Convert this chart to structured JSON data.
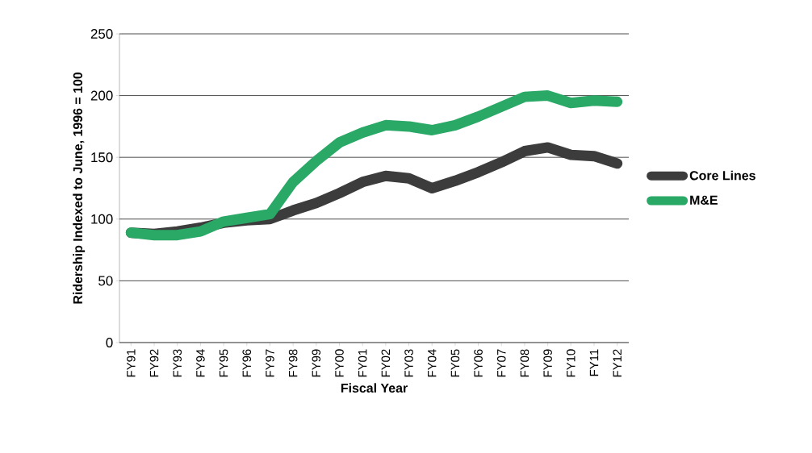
{
  "chart_data": {
    "type": "line",
    "xlabel": "Fiscal Year",
    "ylabel": "Ridership Indexed to June, 1996 = 100",
    "categories": [
      "FY91",
      "FY92",
      "FY93",
      "FY94",
      "FY95",
      "FY96",
      "FY97",
      "FY98",
      "FY99",
      "FY00",
      "FY01",
      "FY02",
      "FY03",
      "FY04",
      "FY05",
      "FY06",
      "FY07",
      "FY08",
      "FY09",
      "FY10",
      "FY11",
      "FY12"
    ],
    "series": [
      {
        "name": "Core Lines",
        "color": "#3c3c3c",
        "values": [
          89,
          88,
          90,
          93,
          97,
          99,
          100,
          107,
          113,
          121,
          130,
          135,
          133,
          125,
          131,
          138,
          146,
          155,
          158,
          152,
          151,
          145
        ]
      },
      {
        "name": "M&E",
        "color": "#2aa866",
        "values": [
          89,
          87,
          87,
          90,
          98,
          101,
          104,
          130,
          147,
          162,
          170,
          176,
          175,
          172,
          176,
          183,
          191,
          199,
          200,
          194,
          196,
          195
        ]
      }
    ],
    "ylim": [
      0,
      250
    ],
    "yticks": [
      0,
      50,
      100,
      150,
      200,
      250
    ],
    "grid": "y",
    "legend": "right",
    "line_style": "solid",
    "marker": "none"
  }
}
